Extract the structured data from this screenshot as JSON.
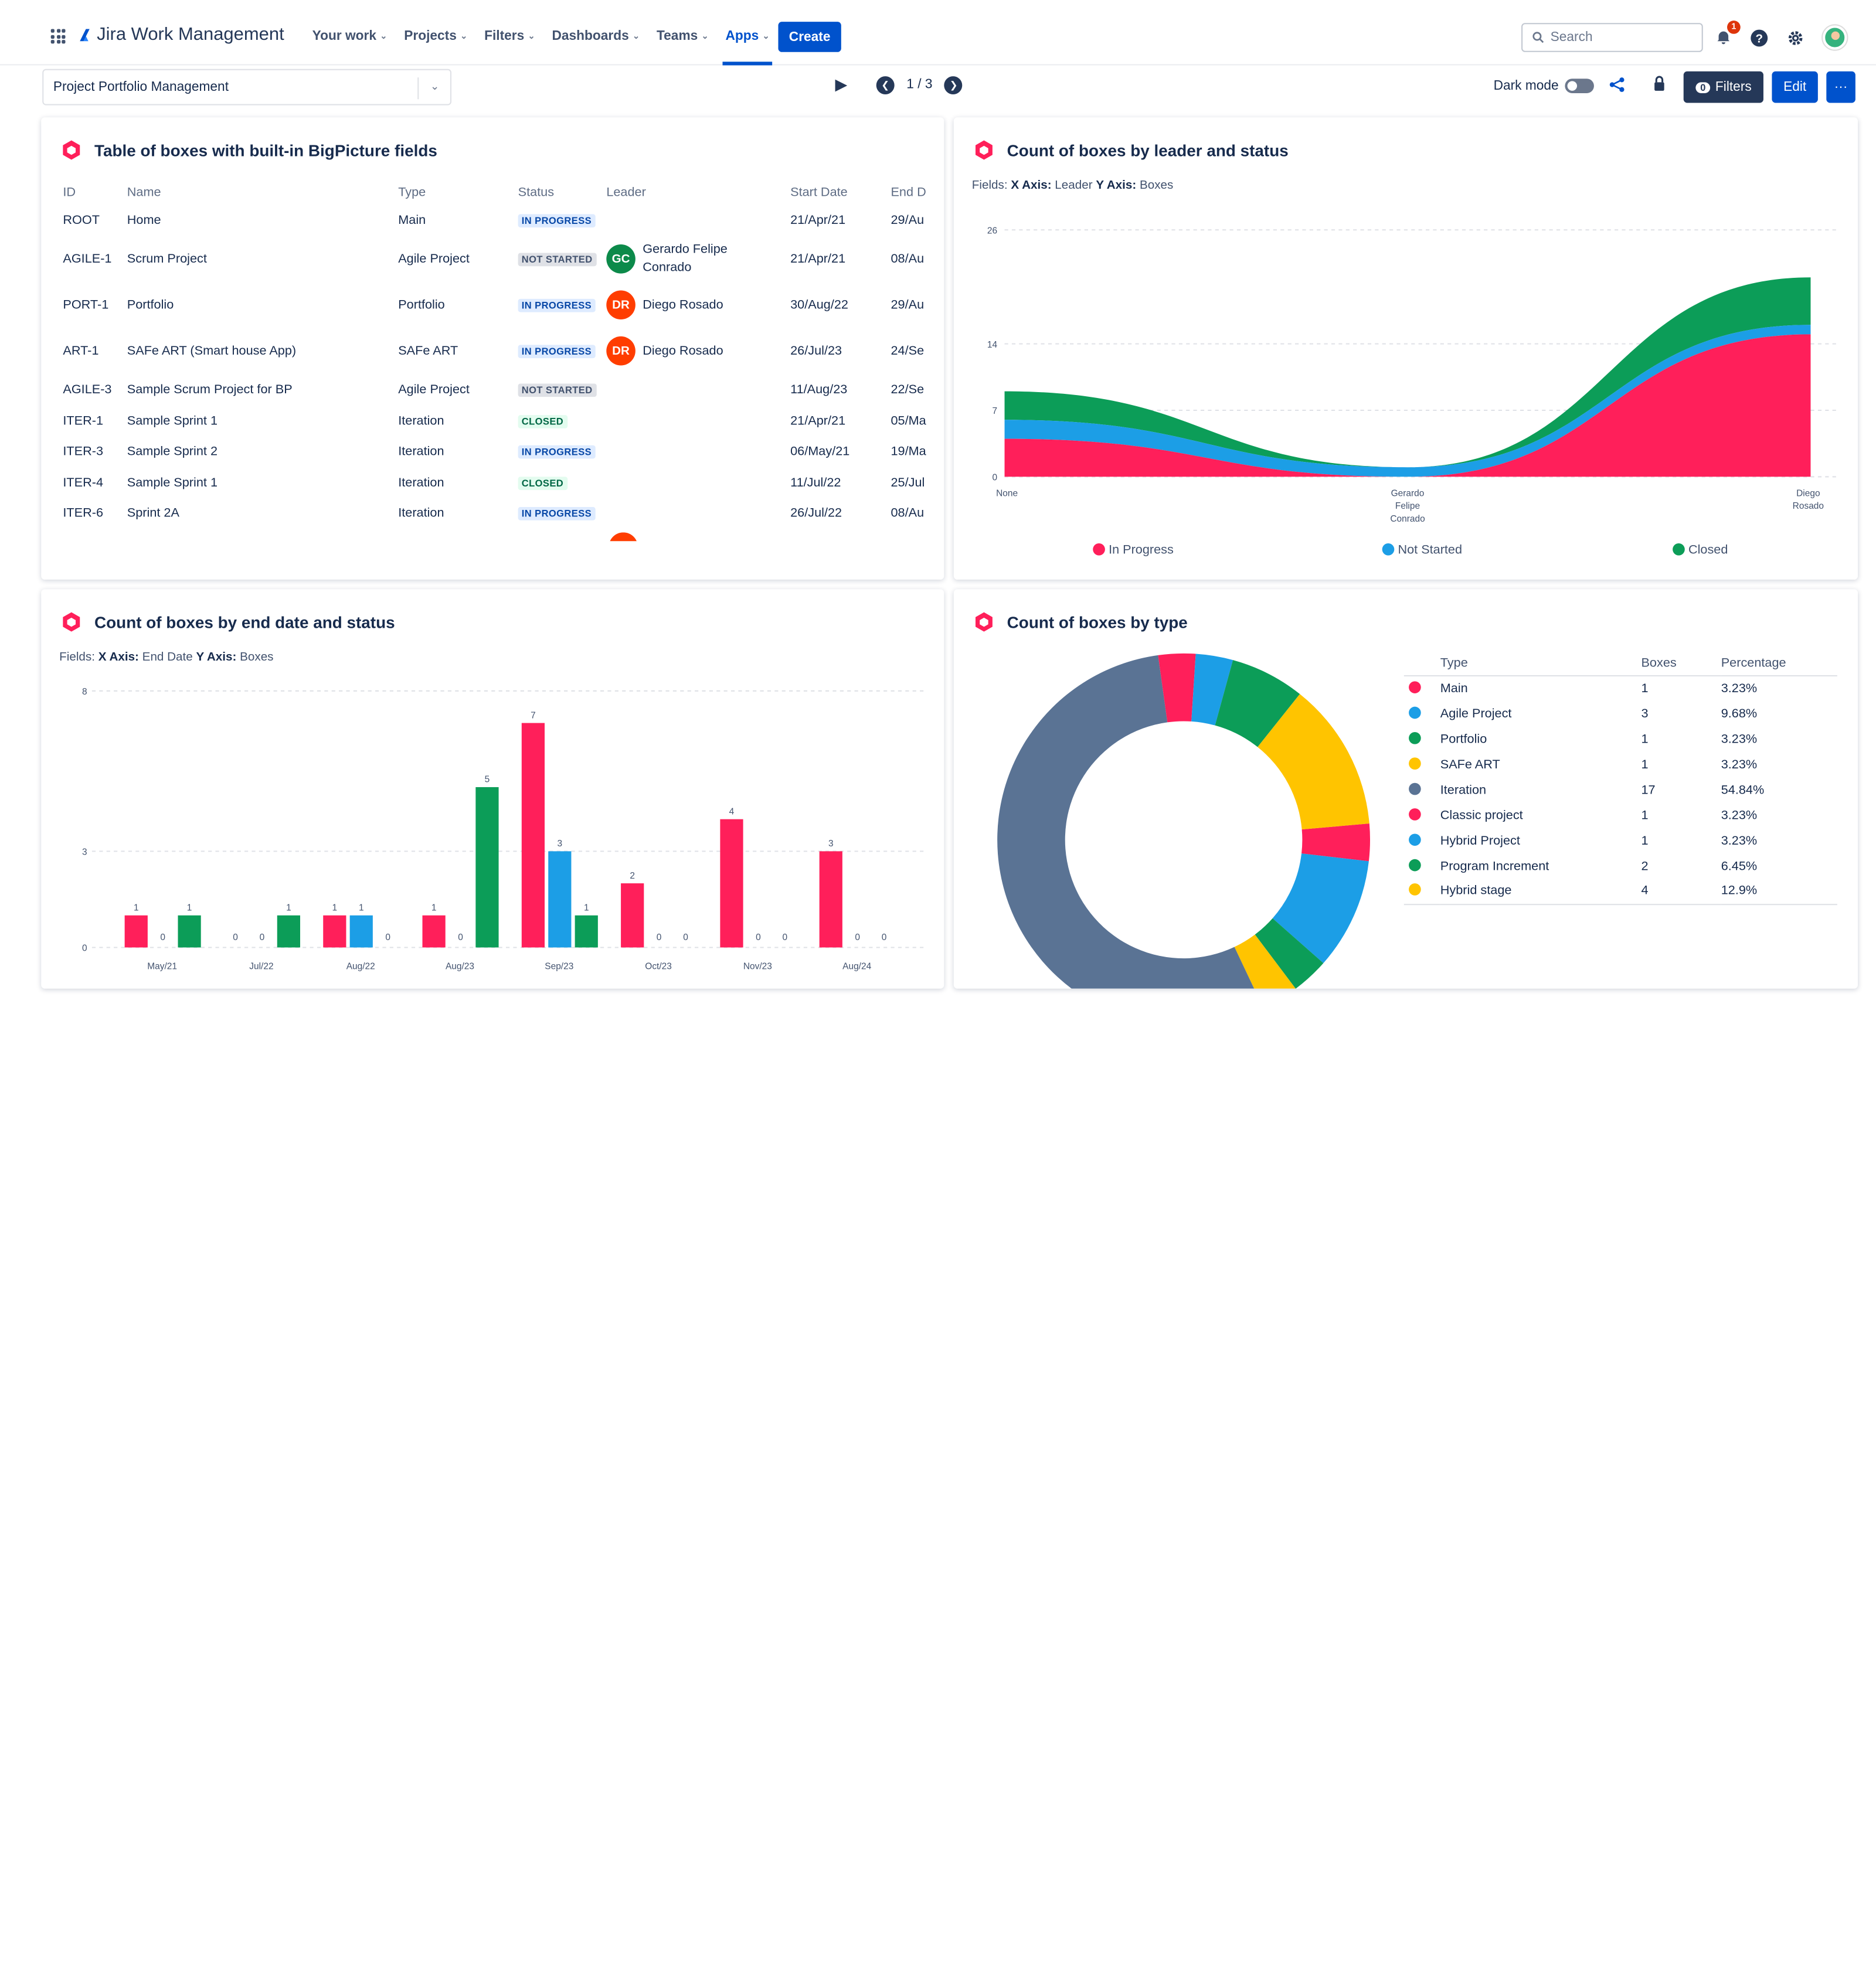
{
  "top_nav": {
    "product": "Jira Work Management",
    "items": [
      {
        "label": "Your work",
        "active": false
      },
      {
        "label": "Projects",
        "active": false
      },
      {
        "label": "Filters",
        "active": false
      },
      {
        "label": "Dashboards",
        "active": false
      },
      {
        "label": "Teams",
        "active": false
      },
      {
        "label": "Apps",
        "active": true
      }
    ],
    "create_label": "Create",
    "search_placeholder": "Search",
    "notification_count": "1",
    "icons": [
      "app-switcher-icon",
      "notification-icon",
      "help-icon",
      "settings-icon"
    ]
  },
  "toolbar": {
    "board": "Project Portfolio Management",
    "pager": "1 / 3",
    "dark_mode_label": "Dark mode",
    "filter_count": "0",
    "filters_label": "Filters",
    "edit_label": "Edit",
    "more_label": "···"
  },
  "table_widget": {
    "title": "Table of boxes with built-in BigPicture fields",
    "columns": [
      "ID",
      "Name",
      "Type",
      "Status",
      "Leader",
      "Start Date",
      "End D"
    ],
    "rows": [
      {
        "id": "ROOT",
        "name": "Home",
        "type": "Main",
        "status": "IN PROGRESS",
        "leader": "",
        "initials": "",
        "start": "21/Apr/21",
        "end": "29/Au"
      },
      {
        "id": "AGILE-1",
        "name": "Scrum Project",
        "type": "Agile Project",
        "status": "NOT STARTED",
        "leader": "Gerardo Felipe Conrado",
        "initials": "GC",
        "start": "21/Apr/21",
        "end": "08/Au"
      },
      {
        "id": "PORT-1",
        "name": "Portfolio",
        "type": "Portfolio",
        "status": "IN PROGRESS",
        "leader": "Diego Rosado",
        "initials": "DR",
        "start": "30/Aug/22",
        "end": "29/Au"
      },
      {
        "id": "ART-1",
        "name": "SAFe ART (Smart house App)",
        "type": "SAFe ART",
        "status": "IN PROGRESS",
        "leader": "Diego Rosado",
        "initials": "DR",
        "start": "26/Jul/23",
        "end": "24/Se"
      },
      {
        "id": "AGILE-3",
        "name": "Sample Scrum Project for BP",
        "type": "Agile Project",
        "status": "NOT STARTED",
        "leader": "",
        "initials": "",
        "start": "11/Aug/23",
        "end": "22/Se"
      },
      {
        "id": "ITER-1",
        "name": "Sample Sprint 1",
        "type": "Iteration",
        "status": "CLOSED",
        "leader": "",
        "initials": "",
        "start": "21/Apr/21",
        "end": "05/Ma"
      },
      {
        "id": "ITER-3",
        "name": "Sample Sprint 2",
        "type": "Iteration",
        "status": "IN PROGRESS",
        "leader": "",
        "initials": "",
        "start": "06/May/21",
        "end": "19/Ma"
      },
      {
        "id": "ITER-4",
        "name": "Sample Sprint 1",
        "type": "Iteration",
        "status": "CLOSED",
        "leader": "",
        "initials": "",
        "start": "11/Jul/22",
        "end": "25/Jul"
      },
      {
        "id": "ITER-6",
        "name": "Sprint 2A",
        "type": "Iteration",
        "status": "IN PROGRESS",
        "leader": "",
        "initials": "",
        "start": "26/Jul/22",
        "end": "08/Au"
      }
    ]
  },
  "area_widget": {
    "title": "Count of boxes by leader and status",
    "fields": {
      "x_label": "X Axis:",
      "x_value": "Leader",
      "y_label": "Y Axis:",
      "y_value": "Boxes"
    }
  },
  "bar_widget": {
    "title": "Count of boxes by end date and status",
    "fields": {
      "x_label": "X Axis:",
      "x_value": "End Date",
      "y_label": "Y Axis:",
      "y_value": "Boxes"
    }
  },
  "pie_widget": {
    "title": "Count of boxes by type",
    "columns": [
      "Type",
      "Boxes",
      "Percentage"
    ]
  },
  "colors": {
    "in_progress": "#ff1f5a",
    "not_started": "#1c9ee6",
    "closed": "#0c9d58",
    "accent": "#0052cc",
    "brand_hex": "#ff1f5a"
  },
  "chart_data": [
    {
      "type": "area",
      "stacked": true,
      "categories": [
        "None",
        "Gerardo Felipe Conrado",
        "Diego Rosado"
      ],
      "series": [
        {
          "name": "In Progress",
          "values": [
            4,
            0,
            15
          ]
        },
        {
          "name": "Not Started",
          "values": [
            2,
            1,
            1
          ]
        },
        {
          "name": "Closed",
          "values": [
            3,
            0,
            5
          ]
        }
      ],
      "yticks": [
        0,
        7,
        14,
        26
      ],
      "ylim": [
        0,
        26
      ],
      "grid": true,
      "legend": "bottom"
    },
    {
      "type": "bar",
      "categories": [
        "May/21",
        "Jul/22",
        "Aug/22",
        "Aug/23",
        "Sep/23",
        "Oct/23",
        "Nov/23",
        "Aug/24"
      ],
      "series": [
        {
          "name": "In Progress",
          "values": [
            1,
            0,
            1,
            1,
            7,
            2,
            4,
            3
          ]
        },
        {
          "name": "Not Started",
          "values": [
            0,
            0,
            1,
            0,
            3,
            0,
            0,
            0
          ]
        },
        {
          "name": "Closed",
          "values": [
            1,
            1,
            0,
            5,
            1,
            0,
            0,
            0
          ]
        }
      ],
      "yticks": [
        0,
        3,
        8
      ],
      "ylim": [
        0,
        8
      ],
      "grid": true
    },
    {
      "type": "pie",
      "donut": true,
      "slices": [
        {
          "label": "Main",
          "value": 1,
          "percent": "3.23%",
          "color": "#ff1f5a"
        },
        {
          "label": "Agile Project",
          "value": 3,
          "percent": "9.68%",
          "color": "#1c9ee6"
        },
        {
          "label": "Portfolio",
          "value": 1,
          "percent": "3.23%",
          "color": "#0c9d58"
        },
        {
          "label": "SAFe ART",
          "value": 1,
          "percent": "3.23%",
          "color": "#ffc400"
        },
        {
          "label": "Iteration",
          "value": 17,
          "percent": "54.84%",
          "color": "#5a7394"
        },
        {
          "label": "Classic project",
          "value": 1,
          "percent": "3.23%",
          "color": "#ff1f5a"
        },
        {
          "label": "Hybrid Project",
          "value": 1,
          "percent": "3.23%",
          "color": "#1c9ee6"
        },
        {
          "label": "Program Increment",
          "value": 2,
          "percent": "6.45%",
          "color": "#0c9d58"
        },
        {
          "label": "Hybrid stage",
          "value": 4,
          "percent": "12.9%",
          "color": "#ffc400"
        }
      ]
    }
  ]
}
